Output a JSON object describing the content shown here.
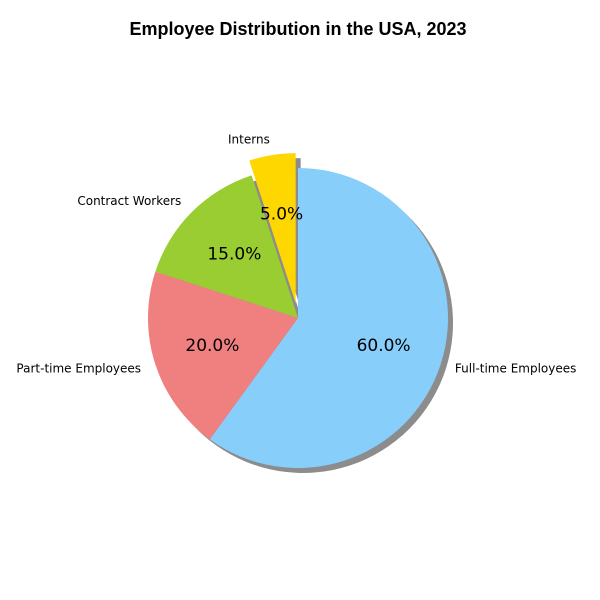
{
  "chart_data": {
    "type": "pie",
    "title": "Employee Distribution in the USA, 2023",
    "slices": [
      {
        "label": "Full-time Employees",
        "value": 60.0,
        "pct_label": "60.0%",
        "color": "#87CEFA",
        "explode": 0
      },
      {
        "label": "Part-time Employees",
        "value": 20.0,
        "pct_label": "20.0%",
        "color": "#F08080",
        "explode": 0
      },
      {
        "label": "Contract Workers",
        "value": 15.0,
        "pct_label": "15.0%",
        "color": "#9ACD32",
        "explode": 0
      },
      {
        "label": "Interns",
        "value": 5.0,
        "pct_label": "5.0%",
        "color": "#FFD700",
        "explode": 0.1
      }
    ],
    "start_angle_deg": 90,
    "direction": "clockwise",
    "shadow": true,
    "legend": "none"
  }
}
